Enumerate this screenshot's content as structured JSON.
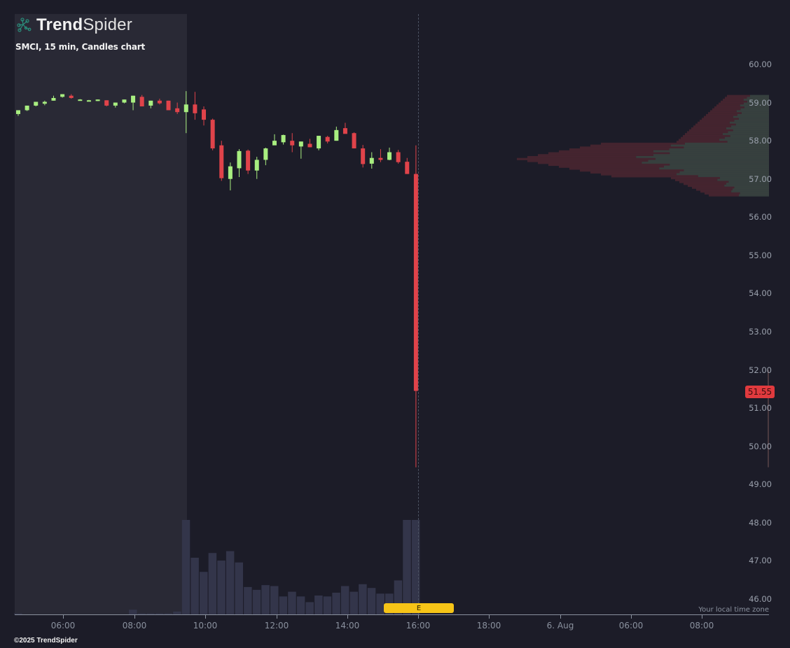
{
  "brand": {
    "name_bold": "Trend",
    "name_light": "Spider",
    "logo_icon": "spider-network-icon",
    "copyright": "©2025 TrendSpider"
  },
  "chart_title": "SMCI, 15 min, Candles chart",
  "colors": {
    "background": "#1c1c28",
    "premarket_shade": "#292935",
    "up": "#a8ee80",
    "down": "#e0434a",
    "volume": "#33354a",
    "earnings_marker": "#f6c417",
    "price_badge": "#e03a3e",
    "axis_text": "#9aa0ac"
  },
  "last_price": "51.55",
  "earnings_label": "E",
  "timezone_note": "Your local time zone",
  "chart_data": {
    "type": "candlestick",
    "title": "SMCI, 15 min, Candles chart",
    "xlabel": "",
    "ylabel": "",
    "ylim": [
      45.6,
      61.3
    ],
    "y_ticks": [
      "60.00",
      "59.00",
      "58.00",
      "57.00",
      "56.00",
      "55.00",
      "54.00",
      "53.00",
      "52.00",
      "51.00",
      "50.00",
      "49.00",
      "48.00",
      "47.00",
      "46.00"
    ],
    "x_ticks": [
      "06:00",
      "08:00",
      "10:00",
      "12:00",
      "14:00",
      "16:00",
      "18:00",
      "6. Aug",
      "06:00",
      "08:00"
    ],
    "grid": false,
    "interval": "15 min",
    "last_price": 51.55,
    "candles": [
      {
        "t": "04:45",
        "o": 58.7,
        "h": 58.8,
        "l": 58.65,
        "c": 58.8
      },
      {
        "t": "05:00",
        "o": 58.8,
        "h": 58.92,
        "l": 58.78,
        "c": 58.92
      },
      {
        "t": "05:15",
        "o": 58.92,
        "h": 59.02,
        "l": 58.9,
        "c": 59.02
      },
      {
        "t": "05:30",
        "o": 58.97,
        "h": 59.05,
        "l": 58.93,
        "c": 59.02
      },
      {
        "t": "05:45",
        "o": 59.05,
        "h": 59.18,
        "l": 59.05,
        "c": 59.12
      },
      {
        "t": "06:00",
        "o": 59.15,
        "h": 59.22,
        "l": 59.13,
        "c": 59.22
      },
      {
        "t": "06:15",
        "o": 59.18,
        "h": 59.22,
        "l": 59.1,
        "c": 59.12
      },
      {
        "t": "06:30",
        "o": 59.07,
        "h": 59.09,
        "l": 59.05,
        "c": 59.08
      },
      {
        "t": "06:45",
        "o": 59.06,
        "h": 59.07,
        "l": 59.05,
        "c": 59.06
      },
      {
        "t": "07:00",
        "o": 59.04,
        "h": 59.08,
        "l": 59.04,
        "c": 59.08
      },
      {
        "t": "07:15",
        "o": 59.06,
        "h": 59.06,
        "l": 58.9,
        "c": 58.92
      },
      {
        "t": "07:30",
        "o": 58.92,
        "h": 59.0,
        "l": 58.87,
        "c": 59.0
      },
      {
        "t": "07:45",
        "o": 59.0,
        "h": 59.08,
        "l": 58.98,
        "c": 59.08
      },
      {
        "t": "08:00",
        "o": 59.0,
        "h": 59.18,
        "l": 58.8,
        "c": 59.18
      },
      {
        "t": "08:15",
        "o": 59.15,
        "h": 59.2,
        "l": 58.9,
        "c": 58.9
      },
      {
        "t": "08:30",
        "o": 58.92,
        "h": 59.05,
        "l": 58.85,
        "c": 59.05
      },
      {
        "t": "08:45",
        "o": 59.05,
        "h": 59.1,
        "l": 58.95,
        "c": 58.98
      },
      {
        "t": "09:00",
        "o": 59.05,
        "h": 59.05,
        "l": 58.8,
        "c": 58.8
      },
      {
        "t": "09:15",
        "o": 58.85,
        "h": 59.0,
        "l": 58.7,
        "c": 58.75
      },
      {
        "t": "09:30",
        "o": 58.75,
        "h": 59.3,
        "l": 58.2,
        "c": 58.95
      },
      {
        "t": "09:45",
        "o": 58.95,
        "h": 59.28,
        "l": 58.55,
        "c": 58.72
      },
      {
        "t": "10:00",
        "o": 58.82,
        "h": 58.9,
        "l": 58.4,
        "c": 58.55
      },
      {
        "t": "10:15",
        "o": 58.55,
        "h": 58.58,
        "l": 57.75,
        "c": 57.8
      },
      {
        "t": "10:30",
        "o": 57.88,
        "h": 58.0,
        "l": 56.95,
        "c": 57.02
      },
      {
        "t": "10:45",
        "o": 57.0,
        "h": 57.43,
        "l": 56.7,
        "c": 57.33
      },
      {
        "t": "11:00",
        "o": 57.28,
        "h": 57.78,
        "l": 57.05,
        "c": 57.73
      },
      {
        "t": "11:15",
        "o": 57.74,
        "h": 57.77,
        "l": 57.13,
        "c": 57.22
      },
      {
        "t": "11:30",
        "o": 57.22,
        "h": 57.58,
        "l": 57.0,
        "c": 57.5
      },
      {
        "t": "11:45",
        "o": 57.5,
        "h": 57.82,
        "l": 57.36,
        "c": 57.8
      },
      {
        "t": "12:00",
        "o": 57.88,
        "h": 58.17,
        "l": 57.9,
        "c": 58.0
      },
      {
        "t": "12:15",
        "o": 57.96,
        "h": 58.16,
        "l": 57.9,
        "c": 58.15
      },
      {
        "t": "12:30",
        "o": 58.0,
        "h": 58.2,
        "l": 57.7,
        "c": 57.88
      },
      {
        "t": "12:45",
        "o": 57.85,
        "h": 57.98,
        "l": 57.53,
        "c": 57.98
      },
      {
        "t": "13:00",
        "o": 57.92,
        "h": 58.05,
        "l": 57.83,
        "c": 57.83
      },
      {
        "t": "13:15",
        "o": 57.8,
        "h": 58.13,
        "l": 57.75,
        "c": 58.13
      },
      {
        "t": "13:30",
        "o": 58.1,
        "h": 58.13,
        "l": 57.93,
        "c": 57.98
      },
      {
        "t": "13:45",
        "o": 58.0,
        "h": 58.37,
        "l": 58.0,
        "c": 58.28
      },
      {
        "t": "14:00",
        "o": 58.33,
        "h": 58.47,
        "l": 58.2,
        "c": 58.18
      },
      {
        "t": "14:15",
        "o": 58.2,
        "h": 58.22,
        "l": 57.8,
        "c": 57.8
      },
      {
        "t": "14:30",
        "o": 57.8,
        "h": 57.89,
        "l": 57.3,
        "c": 57.39
      },
      {
        "t": "14:45",
        "o": 57.4,
        "h": 57.7,
        "l": 57.27,
        "c": 57.55
      },
      {
        "t": "15:00",
        "o": 57.55,
        "h": 57.78,
        "l": 57.44,
        "c": 57.5
      },
      {
        "t": "15:15",
        "o": 57.5,
        "h": 57.82,
        "l": 57.49,
        "c": 57.7
      },
      {
        "t": "15:30",
        "o": 57.7,
        "h": 57.76,
        "l": 57.4,
        "c": 57.44
      },
      {
        "t": "15:45",
        "o": 57.45,
        "h": 57.55,
        "l": 57.13,
        "c": 57.13
      },
      {
        "t": "16:00",
        "o": 57.13,
        "h": 57.88,
        "l": 49.45,
        "c": 51.45
      }
    ],
    "volume_relative": [
      0.01,
      0,
      0,
      0,
      0,
      0,
      0,
      0,
      0,
      0,
      0,
      0,
      0,
      0.05,
      0.01,
      0.01,
      0.01,
      0.01,
      0.03,
      1.0,
      0.6,
      0.45,
      0.65,
      0.57,
      0.67,
      0.55,
      0.29,
      0.26,
      0.31,
      0.3,
      0.19,
      0.24,
      0.19,
      0.13,
      0.2,
      0.19,
      0.23,
      0.3,
      0.24,
      0.32,
      0.28,
      0.22,
      0.22,
      0.36,
      1.0,
      1.0
    ],
    "volume_profile": {
      "price_range": [
        56.6,
        59.2
      ],
      "max_volume_price": 57.55,
      "note": "horizontal volume-by-price bars on right, split red/green"
    },
    "annotations": [
      {
        "type": "earnings",
        "label": "E",
        "x": "16:00"
      }
    ]
  }
}
